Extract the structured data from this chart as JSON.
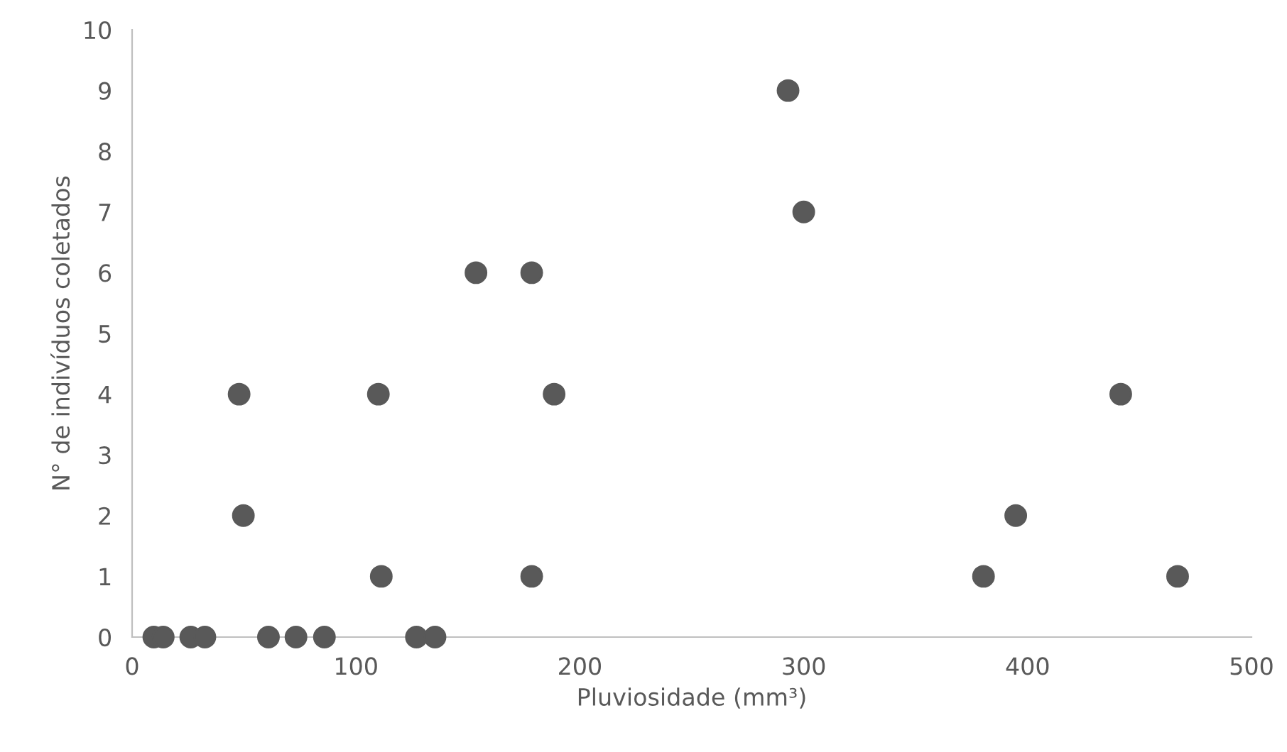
{
  "chart_data": {
    "type": "scatter",
    "xlabel": "Pluviosidade (mm³)",
    "ylabel": "N° de indivíduos coletados",
    "x": [
      9.7,
      13.9,
      26.2,
      32.5,
      60.9,
      73.2,
      85.9,
      127,
      135.3,
      47.8,
      49.7,
      110,
      111.3,
      153.6,
      178.5,
      178.5,
      188.5,
      293,
      300,
      380.3,
      394.7,
      441.6,
      467
    ],
    "values": [
      0,
      0,
      0,
      0,
      0,
      0,
      0,
      0,
      0,
      4,
      2,
      4,
      1,
      6,
      6,
      1,
      4,
      9,
      7,
      1,
      2,
      4,
      1
    ],
    "color": "#595959",
    "marker": "circle",
    "xlim": [
      0,
      500
    ],
    "xticks": [
      0,
      100,
      200,
      300,
      400,
      500
    ],
    "ylim": [
      0,
      10
    ],
    "yticks": [
      0,
      1,
      2,
      3,
      4,
      5,
      6,
      7,
      8,
      9,
      10
    ],
    "grid": false
  }
}
